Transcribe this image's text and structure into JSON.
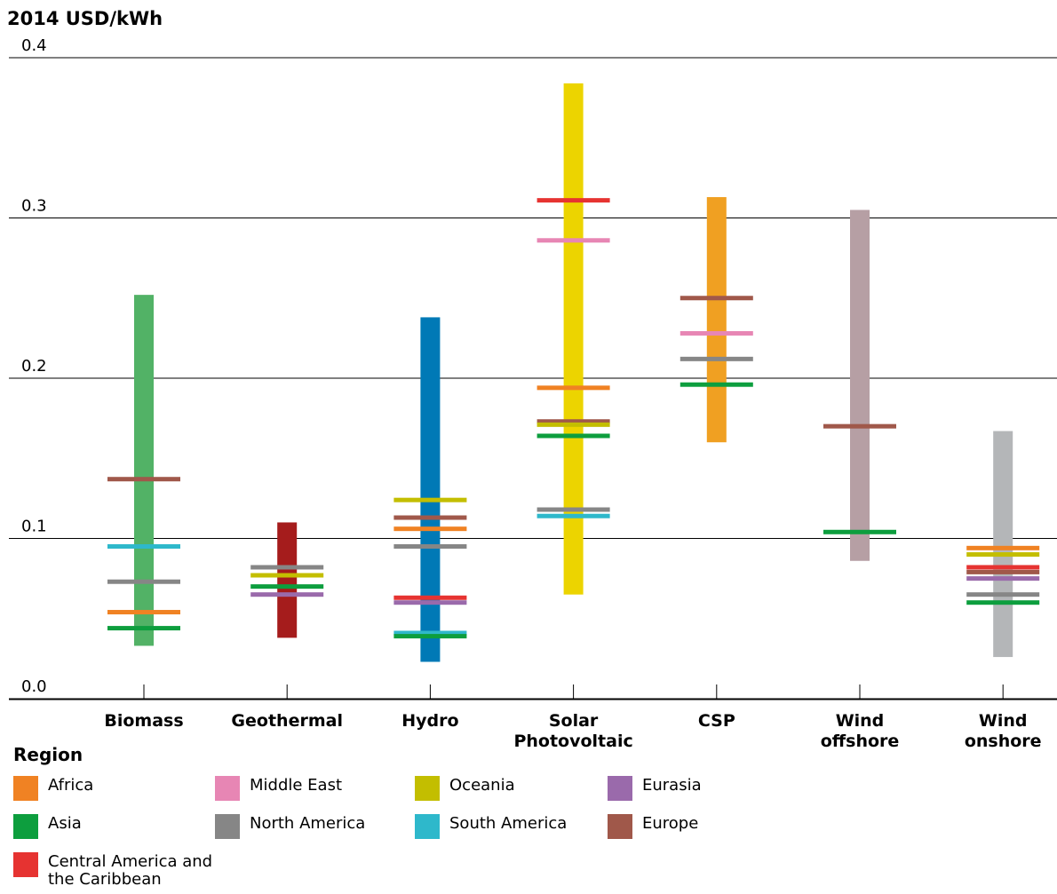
{
  "chart_data": {
    "type": "range-bar",
    "title": "2014 USD/kWh",
    "ylim": [
      0,
      0.4
    ],
    "yticks": [
      "0.0",
      "0.1",
      "0.2",
      "0.3",
      "0.4"
    ],
    "categories": [
      {
        "lines": [
          "Biomass"
        ],
        "range": [
          0.033,
          0.252
        ],
        "color": "#52b266",
        "markers": [
          {
            "region": "Europe",
            "value": 0.137
          },
          {
            "region": "South America",
            "value": 0.095
          },
          {
            "region": "North America",
            "value": 0.073
          },
          {
            "region": "Africa",
            "value": 0.054
          },
          {
            "region": "Asia",
            "value": 0.044
          }
        ]
      },
      {
        "lines": [
          "Geothermal"
        ],
        "range": [
          0.038,
          0.11
        ],
        "color": "#a51c1c",
        "markers": [
          {
            "region": "North America",
            "value": 0.082
          },
          {
            "region": "Oceania",
            "value": 0.077
          },
          {
            "region": "Asia",
            "value": 0.07
          },
          {
            "region": "Eurasia",
            "value": 0.065
          }
        ]
      },
      {
        "lines": [
          "Hydro"
        ],
        "range": [
          0.023,
          0.238
        ],
        "color": "#0079b6",
        "markers": [
          {
            "region": "Oceania",
            "value": 0.124
          },
          {
            "region": "Europe",
            "value": 0.113
          },
          {
            "region": "Africa",
            "value": 0.106
          },
          {
            "region": "North America",
            "value": 0.095
          },
          {
            "region": "Central America and the Caribbean",
            "value": 0.063
          },
          {
            "region": "Eurasia",
            "value": 0.06
          },
          {
            "region": "South America",
            "value": 0.041
          },
          {
            "region": "Asia",
            "value": 0.039
          }
        ]
      },
      {
        "lines": [
          "Solar",
          "Photovoltaic"
        ],
        "range": [
          0.065,
          0.384
        ],
        "color": "#ecd400",
        "markers": [
          {
            "region": "Central America and the Caribbean",
            "value": 0.311
          },
          {
            "region": "Middle East",
            "value": 0.286
          },
          {
            "region": "Africa",
            "value": 0.194
          },
          {
            "region": "Europe",
            "value": 0.173
          },
          {
            "region": "Oceania",
            "value": 0.171
          },
          {
            "region": "Asia",
            "value": 0.164
          },
          {
            "region": "North America",
            "value": 0.118
          },
          {
            "region": "South America",
            "value": 0.114
          }
        ]
      },
      {
        "lines": [
          "CSP"
        ],
        "range": [
          0.16,
          0.313
        ],
        "color": "#f0a022",
        "markers": [
          {
            "region": "Europe",
            "value": 0.25
          },
          {
            "region": "Middle East",
            "value": 0.228
          },
          {
            "region": "North America",
            "value": 0.212
          },
          {
            "region": "Asia",
            "value": 0.196
          }
        ]
      },
      {
        "lines": [
          "Wind",
          "offshore"
        ],
        "range": [
          0.086,
          0.305
        ],
        "color": "#b69fa4",
        "markers": [
          {
            "region": "Europe",
            "value": 0.17
          },
          {
            "region": "Asia",
            "value": 0.104
          }
        ]
      },
      {
        "lines": [
          "Wind",
          "onshore"
        ],
        "range": [
          0.026,
          0.167
        ],
        "color": "#b4b6b8",
        "markers": [
          {
            "region": "Africa",
            "value": 0.094
          },
          {
            "region": "Oceania",
            "value": 0.09
          },
          {
            "region": "Central America and the Caribbean",
            "value": 0.082
          },
          {
            "region": "Europe",
            "value": 0.079
          },
          {
            "region": "Eurasia",
            "value": 0.075
          },
          {
            "region": "North America",
            "value": 0.065
          },
          {
            "region": "Asia",
            "value": 0.06
          }
        ]
      }
    ],
    "legend": {
      "title": "Region",
      "items": [
        {
          "label": "Africa",
          "color": "#f08223"
        },
        {
          "label": "Asia",
          "color": "#0d9e3e"
        },
        {
          "label": "Central America and the Caribbean",
          "color": "#e63331"
        },
        {
          "label": "Middle East",
          "color": "#e786b4"
        },
        {
          "label": "North America",
          "color": "#868686"
        },
        {
          "label": "Oceania",
          "color": "#c3be00"
        },
        {
          "label": "South America",
          "color": "#2eb8cb"
        },
        {
          "label": "Eurasia",
          "color": "#9a6aab"
        },
        {
          "label": "Europe",
          "color": "#a0584a"
        }
      ]
    }
  }
}
